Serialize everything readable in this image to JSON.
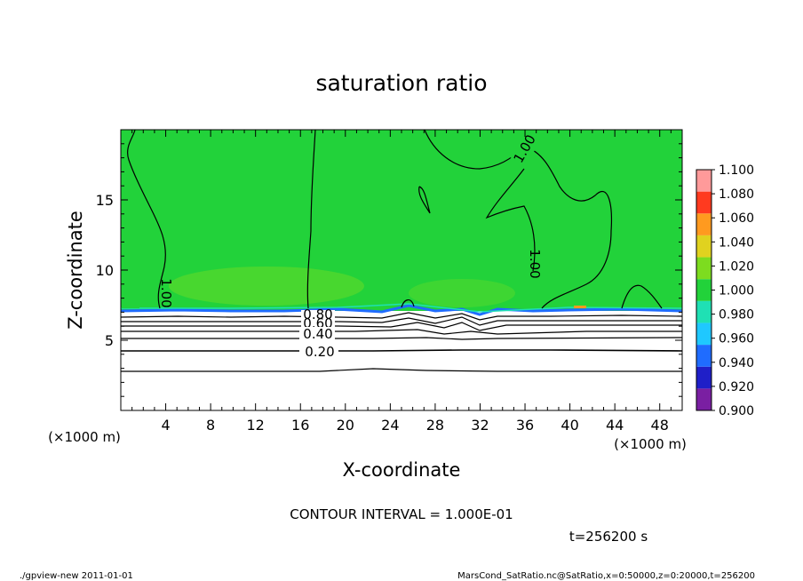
{
  "chart_data": {
    "type": "heatmap",
    "title": "saturation ratio",
    "xlabel": "X-coordinate",
    "ylabel": "Z-coordinate",
    "x_unit": "(×1000 m)",
    "z_unit": "(×1000 m)",
    "xlim": [
      0,
      50
    ],
    "ylim": [
      0,
      20
    ],
    "x_ticks": [
      "4",
      "8",
      "12",
      "16",
      "20",
      "24",
      "28",
      "32",
      "36",
      "40",
      "44",
      "48"
    ],
    "y_ticks": [
      "5",
      "10",
      "15"
    ],
    "colorbar": {
      "labels": [
        "0.900",
        "0.920",
        "0.940",
        "0.960",
        "0.980",
        "1.000",
        "1.020",
        "1.040",
        "1.060",
        "1.080",
        "1.100"
      ],
      "colors": [
        "#7a1fa2",
        "#1f1fc8",
        "#1f6cff",
        "#1fc8ff",
        "#1fe0b4",
        "#22d23a",
        "#7ddc1f",
        "#e0d21f",
        "#ff9a1f",
        "#ff3a1f",
        "#ff9a9a"
      ]
    },
    "contour_labels": [
      "1.00",
      "1.00",
      "1.00",
      "0.80",
      "0.60",
      "0.40",
      "0.20"
    ],
    "contour_levels": [
      {
        "value": 0.2,
        "z": 4.2
      },
      {
        "value": 0.4,
        "z": 5.3
      },
      {
        "value": 0.6,
        "z": 5.9
      },
      {
        "value": 0.8,
        "z": 6.35
      },
      {
        "value": 0.9,
        "z": 6.6
      }
    ],
    "saturation_boundary_z": 7.0,
    "contour_interval": "CONTOUR INTERVAL = 1.000E-01",
    "time": "t=256200 s"
  },
  "footer": {
    "program": "./gpview-new  2011-01-01",
    "source": "MarsCond_SatRatio.nc@SatRatio,x=0:50000,z=0:20000,t=256200"
  }
}
